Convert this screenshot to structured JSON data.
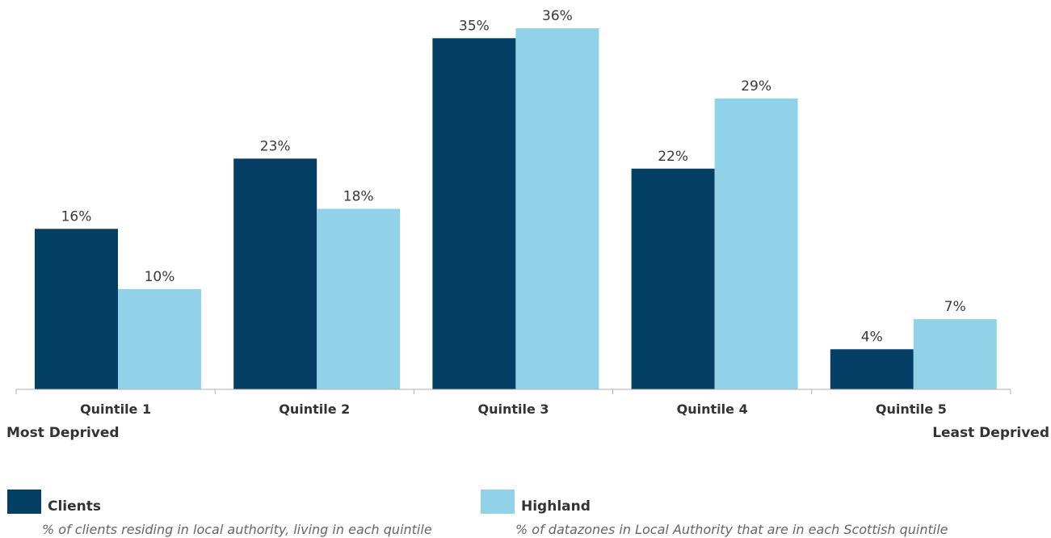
{
  "chart_data": {
    "type": "bar",
    "categories": [
      "Quintile 1",
      "Quintile 2",
      "Quintile 3",
      "Quintile 4",
      "Quintile 5"
    ],
    "series": [
      {
        "name": "Clients",
        "color": "#063f66",
        "values": [
          16,
          23,
          35,
          22,
          4
        ],
        "labels": [
          "16%",
          "23%",
          "35%",
          "22%",
          "4%"
        ]
      },
      {
        "name": "Highland",
        "color": "#92d2e8",
        "values": [
          10,
          18,
          36,
          29,
          7
        ],
        "labels": [
          "10%",
          "18%",
          "36%",
          "29%",
          "7%"
        ]
      }
    ],
    "ylim": [
      0,
      36
    ],
    "unit": "%",
    "grid": false,
    "axis_end_labels": {
      "left": "Most Deprived",
      "right": "Least Deprived"
    }
  },
  "legend": [
    {
      "name": "Clients",
      "color": "#063f66",
      "description": "% of clients residing in local authority, living in each quintile"
    },
    {
      "name": "Highland",
      "color": "#92d2e8",
      "description": "% of datazones in Local Authority that are in each Scottish quintile"
    }
  ]
}
